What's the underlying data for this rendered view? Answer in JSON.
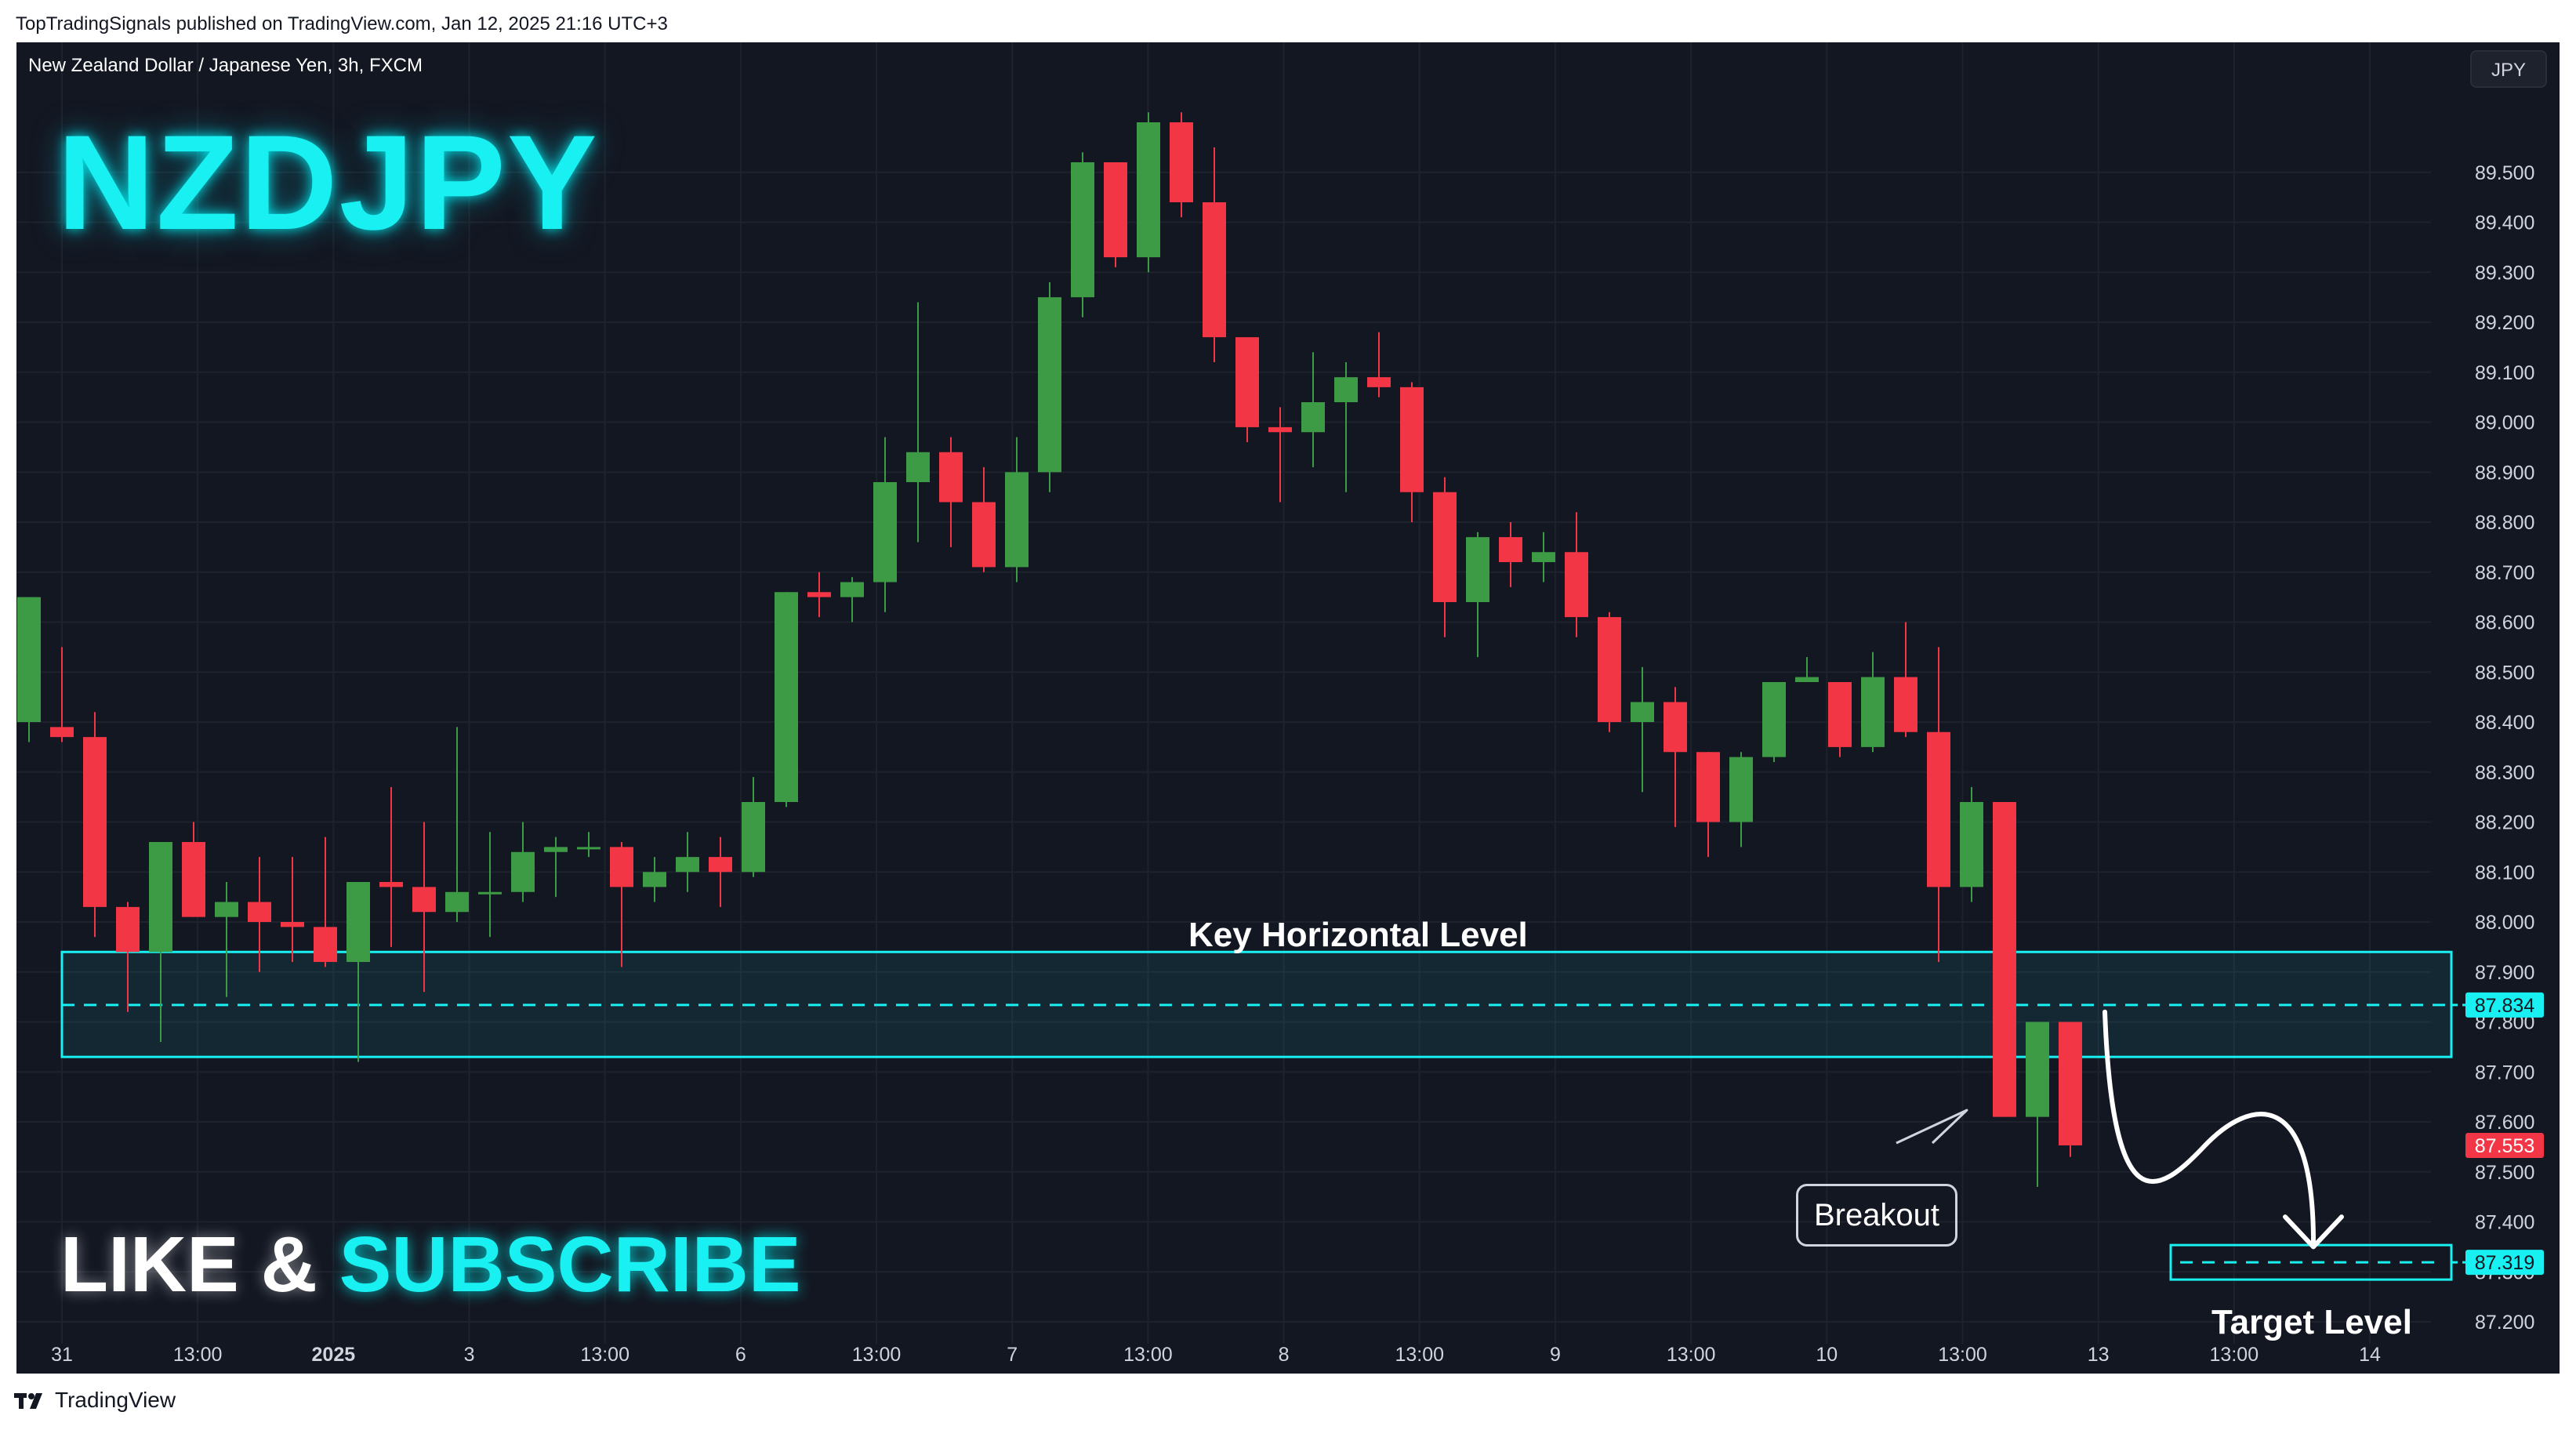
{
  "header": {
    "publisher_line": "TopTradingSignals published on TradingView.com, Jan 12, 2025 21:16 UTC+3"
  },
  "chart": {
    "symbol_description": "New Zealand Dollar / Japanese Yen, 3h, FXCM",
    "currency": "JPY",
    "big_ticker": "NZDJPY",
    "cta_like": "LIKE &",
    "cta_subscribe": "SUBSCRIBE",
    "annotations": {
      "key_level_label": "Key Horizontal Level",
      "target_level_label": "Target Level",
      "breakout_label": "Breakout"
    }
  },
  "footer": {
    "brand": "TradingView"
  },
  "colors": {
    "background": "#131722",
    "up": "#26a69a",
    "up_body": "#3d9a45",
    "down": "#f23645",
    "accent_cyan": "#19f0f2",
    "grid": "#1e222d",
    "axis_text": "#d1d4dc"
  },
  "chart_data": {
    "type": "candlestick",
    "title": "New Zealand Dollar / Japanese Yen, 3h, FXCM",
    "ylim": [
      87.2,
      89.6
    ],
    "y_ticks": [
      "89.500",
      "89.400",
      "89.300",
      "89.200",
      "89.100",
      "89.000",
      "88.900",
      "88.800",
      "88.700",
      "88.600",
      "88.500",
      "88.400",
      "88.300",
      "88.200",
      "88.100",
      "88.000",
      "87.900",
      "87.800",
      "87.700",
      "87.600",
      "87.500",
      "87.400",
      "87.300",
      "87.200"
    ],
    "x_ticks": [
      "31",
      "13:00",
      "2025",
      "3",
      "13:00",
      "6",
      "13:00",
      "7",
      "13:00",
      "8",
      "13:00",
      "9",
      "13:00",
      "10",
      "13:00",
      "13",
      "13:00",
      "14"
    ],
    "candles": [
      {
        "o": 88.4,
        "h": 88.65,
        "l": 88.36,
        "c": 88.65
      },
      {
        "o": 88.39,
        "h": 88.55,
        "l": 88.36,
        "c": 88.37
      },
      {
        "o": 88.37,
        "h": 88.42,
        "l": 87.97,
        "c": 88.03
      },
      {
        "o": 88.03,
        "h": 88.04,
        "l": 87.82,
        "c": 87.94
      },
      {
        "o": 87.94,
        "h": 88.16,
        "l": 87.76,
        "c": 88.16
      },
      {
        "o": 88.16,
        "h": 88.2,
        "l": 88.01,
        "c": 88.01
      },
      {
        "o": 88.01,
        "h": 88.08,
        "l": 87.85,
        "c": 88.04
      },
      {
        "o": 88.04,
        "h": 88.13,
        "l": 87.9,
        "c": 88.0
      },
      {
        "o": 88.0,
        "h": 88.13,
        "l": 87.92,
        "c": 87.99
      },
      {
        "o": 87.99,
        "h": 88.17,
        "l": 87.91,
        "c": 87.92
      },
      {
        "o": 87.92,
        "h": 88.08,
        "l": 87.72,
        "c": 88.08
      },
      {
        "o": 88.08,
        "h": 88.27,
        "l": 87.95,
        "c": 88.07
      },
      {
        "o": 88.07,
        "h": 88.2,
        "l": 87.86,
        "c": 88.02
      },
      {
        "o": 88.02,
        "h": 88.39,
        "l": 88.0,
        "c": 88.06
      },
      {
        "o": 88.06,
        "h": 88.18,
        "l": 87.97,
        "c": 88.06
      },
      {
        "o": 88.06,
        "h": 88.2,
        "l": 88.04,
        "c": 88.14
      },
      {
        "o": 88.14,
        "h": 88.17,
        "l": 88.05,
        "c": 88.15
      },
      {
        "o": 88.15,
        "h": 88.18,
        "l": 88.13,
        "c": 88.15
      },
      {
        "o": 88.15,
        "h": 88.16,
        "l": 87.91,
        "c": 88.07
      },
      {
        "o": 88.07,
        "h": 88.13,
        "l": 88.04,
        "c": 88.1
      },
      {
        "o": 88.1,
        "h": 88.18,
        "l": 88.06,
        "c": 88.13
      },
      {
        "o": 88.13,
        "h": 88.17,
        "l": 88.03,
        "c": 88.1
      },
      {
        "o": 88.1,
        "h": 88.29,
        "l": 88.09,
        "c": 88.24
      },
      {
        "o": 88.24,
        "h": 88.66,
        "l": 88.23,
        "c": 88.66
      },
      {
        "o": 88.66,
        "h": 88.7,
        "l": 88.61,
        "c": 88.65
      },
      {
        "o": 88.65,
        "h": 88.69,
        "l": 88.6,
        "c": 88.68
      },
      {
        "o": 88.68,
        "h": 88.97,
        "l": 88.62,
        "c": 88.88
      },
      {
        "o": 88.88,
        "h": 89.24,
        "l": 88.76,
        "c": 88.94
      },
      {
        "o": 88.94,
        "h": 88.97,
        "l": 88.75,
        "c": 88.84
      },
      {
        "o": 88.84,
        "h": 88.91,
        "l": 88.7,
        "c": 88.71
      },
      {
        "o": 88.71,
        "h": 88.97,
        "l": 88.68,
        "c": 88.9
      },
      {
        "o": 88.9,
        "h": 89.28,
        "l": 88.86,
        "c": 89.25
      },
      {
        "o": 89.25,
        "h": 89.54,
        "l": 89.21,
        "c": 89.52
      },
      {
        "o": 89.52,
        "h": 89.52,
        "l": 89.31,
        "c": 89.33
      },
      {
        "o": 89.33,
        "h": 89.62,
        "l": 89.3,
        "c": 89.6
      },
      {
        "o": 89.6,
        "h": 89.62,
        "l": 89.41,
        "c": 89.44
      },
      {
        "o": 89.44,
        "h": 89.55,
        "l": 89.12,
        "c": 89.17
      },
      {
        "o": 89.17,
        "h": 89.16,
        "l": 88.96,
        "c": 88.99
      },
      {
        "o": 88.99,
        "h": 89.03,
        "l": 88.84,
        "c": 88.98
      },
      {
        "o": 88.98,
        "h": 89.14,
        "l": 88.91,
        "c": 89.04
      },
      {
        "o": 89.04,
        "h": 89.12,
        "l": 88.86,
        "c": 89.09
      },
      {
        "o": 89.09,
        "h": 89.18,
        "l": 89.05,
        "c": 89.07
      },
      {
        "o": 89.07,
        "h": 89.08,
        "l": 88.8,
        "c": 88.86
      },
      {
        "o": 88.86,
        "h": 88.89,
        "l": 88.57,
        "c": 88.64
      },
      {
        "o": 88.64,
        "h": 88.78,
        "l": 88.53,
        "c": 88.77
      },
      {
        "o": 88.77,
        "h": 88.8,
        "l": 88.67,
        "c": 88.72
      },
      {
        "o": 88.72,
        "h": 88.78,
        "l": 88.68,
        "c": 88.74
      },
      {
        "o": 88.74,
        "h": 88.82,
        "l": 88.57,
        "c": 88.61
      },
      {
        "o": 88.61,
        "h": 88.62,
        "l": 88.38,
        "c": 88.4
      },
      {
        "o": 88.4,
        "h": 88.51,
        "l": 88.26,
        "c": 88.44
      },
      {
        "o": 88.44,
        "h": 88.47,
        "l": 88.19,
        "c": 88.34
      },
      {
        "o": 88.34,
        "h": 88.34,
        "l": 88.13,
        "c": 88.2
      },
      {
        "o": 88.2,
        "h": 88.34,
        "l": 88.15,
        "c": 88.33
      },
      {
        "o": 88.33,
        "h": 88.48,
        "l": 88.32,
        "c": 88.48
      },
      {
        "o": 88.48,
        "h": 88.53,
        "l": 88.48,
        "c": 88.49
      },
      {
        "o": 88.48,
        "h": 88.48,
        "l": 88.33,
        "c": 88.35
      },
      {
        "o": 88.35,
        "h": 88.54,
        "l": 88.34,
        "c": 88.49
      },
      {
        "o": 88.49,
        "h": 88.6,
        "l": 88.37,
        "c": 88.38
      },
      {
        "o": 88.38,
        "h": 88.55,
        "l": 87.92,
        "c": 88.07
      },
      {
        "o": 88.07,
        "h": 88.27,
        "l": 88.04,
        "c": 88.24
      },
      {
        "o": 88.24,
        "h": 88.24,
        "l": 87.61,
        "c": 87.61
      },
      {
        "o": 87.61,
        "h": 87.8,
        "l": 87.47,
        "c": 87.8
      },
      {
        "o": 87.8,
        "h": 87.8,
        "l": 87.53,
        "c": 87.553
      }
    ],
    "key_level_zone": {
      "top": 87.94,
      "bottom": 87.73,
      "mid": 87.834
    },
    "target_level": 87.319,
    "price_labels": [
      {
        "label": "87.834",
        "value": 87.834,
        "color": "#19f0f2",
        "text_color": "#131722"
      },
      {
        "label": "87.553",
        "value": 87.553,
        "color": "#f23645",
        "text_color": "#ffffff"
      },
      {
        "label": "87.319",
        "value": 87.319,
        "color": "#19f0f2",
        "text_color": "#131722"
      }
    ]
  }
}
